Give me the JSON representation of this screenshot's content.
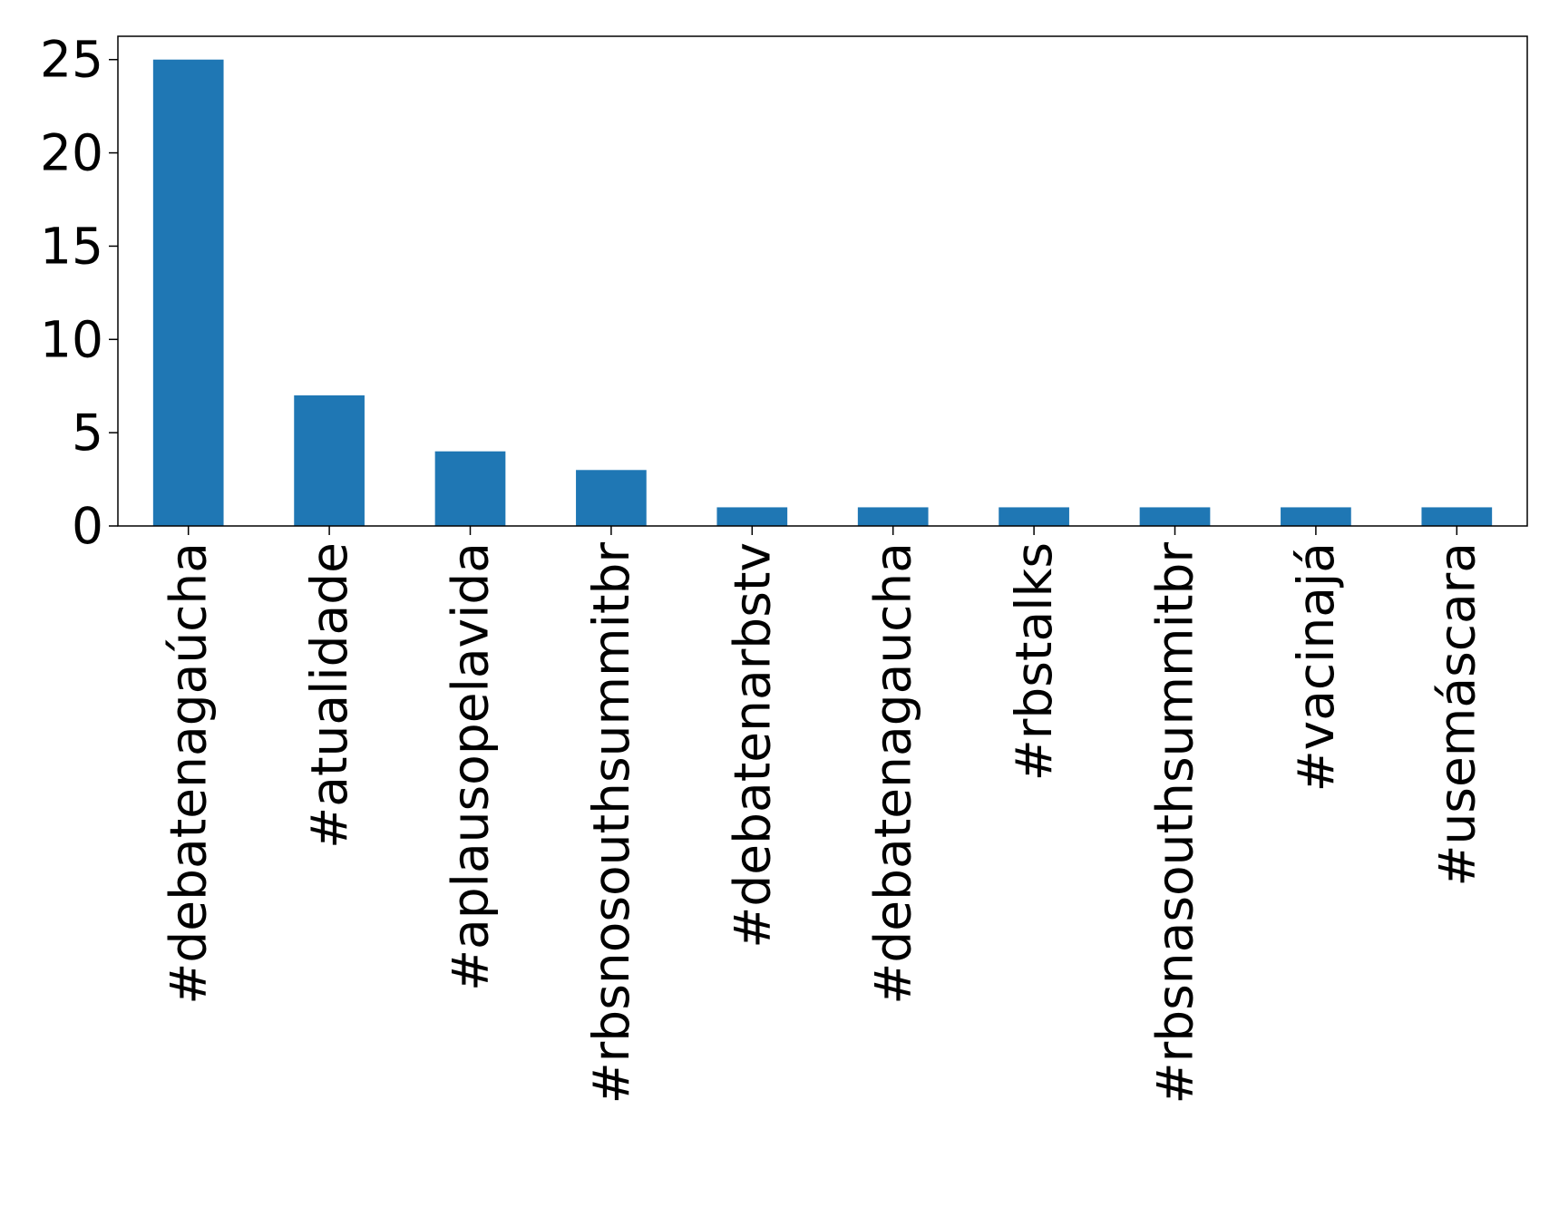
{
  "chart_data": {
    "type": "bar",
    "categories": [
      "#debatenagaúcha",
      "#atualidade",
      "#aplausopelavida",
      "#rbsnosouthsummitbr",
      "#debatenarbstv",
      "#debatenagaucha",
      "#rbstalks",
      "#rbsnasouthsummitbr",
      "#vacinajá",
      "#usemáscara"
    ],
    "values": [
      25,
      7,
      4,
      3,
      1,
      1,
      1,
      1,
      1,
      1
    ],
    "color": "#1f77b4",
    "ylim": [
      0,
      26.25
    ],
    "yticks": [
      0,
      5,
      10,
      15,
      20,
      25
    ],
    "grid": false
  }
}
